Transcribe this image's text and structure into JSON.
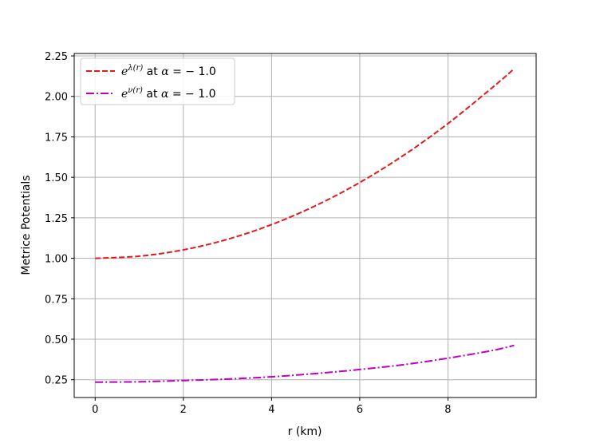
{
  "chart_data": {
    "type": "line",
    "xlabel": "r (km)",
    "ylabel": "Metrice Potentials",
    "xlim": [
      -0.475,
      10.0
    ],
    "ylim": [
      0.14,
      2.265
    ],
    "xticks": [
      0,
      2,
      4,
      6,
      8
    ],
    "xtick_labels": [
      "0",
      "2",
      "4",
      "6",
      "8"
    ],
    "yticks": [
      0.25,
      0.5,
      0.75,
      1.0,
      1.25,
      1.5,
      1.75,
      2.0,
      2.25
    ],
    "ytick_labels": [
      "0.25",
      "0.50",
      "0.75",
      "1.00",
      "1.25",
      "1.50",
      "1.75",
      "2.00",
      "2.25"
    ],
    "grid": true,
    "legend_position": "top-left",
    "series": [
      {
        "name": "e^{λ(r)} at α = −1.0",
        "legend_parts": {
          "base": "e",
          "sup": "λ(r)",
          "mid": " at ",
          "alpha": "α",
          "rest": " = − 1.0"
        },
        "color": "#e41a1c",
        "style": "dashed",
        "x": [
          0,
          1,
          2,
          3,
          4,
          5,
          6,
          7,
          8,
          9,
          9.5
        ],
        "y": [
          1.0,
          1.013,
          1.052,
          1.117,
          1.208,
          1.325,
          1.468,
          1.637,
          1.832,
          2.053,
          2.17
        ]
      },
      {
        "name": "e^{ν(r)} at α = −1.0",
        "legend_parts": {
          "base": "e",
          "sup": "ν(r)",
          "mid": " at ",
          "alpha": "α",
          "rest": " = − 1.0"
        },
        "color": "#bf00bf",
        "style": "dashdot",
        "x": [
          0,
          1,
          2,
          3,
          4,
          5,
          6,
          7,
          8,
          9,
          9.5
        ],
        "y": [
          0.235,
          0.237,
          0.245,
          0.254,
          0.268,
          0.288,
          0.313,
          0.343,
          0.383,
          0.43,
          0.462
        ]
      }
    ]
  }
}
